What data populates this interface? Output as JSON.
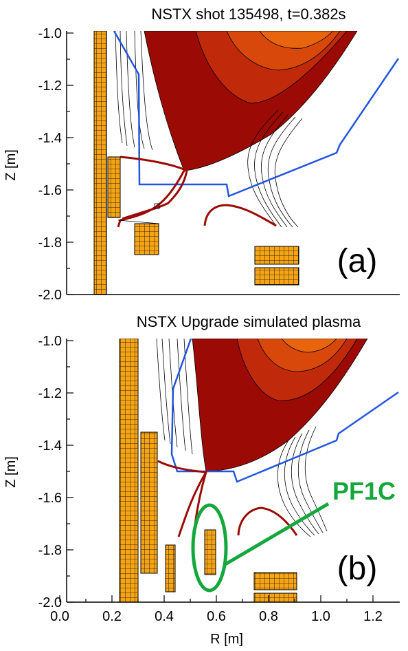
{
  "panel_a": {
    "title": "NSTX shot 135498, t=0.382s",
    "ylabel": "Z [m]",
    "yticks": [
      "-1.0",
      "-1.2",
      "-1.4",
      "-1.6",
      "-1.8",
      "-2.0"
    ],
    "label": "(a)"
  },
  "panel_b": {
    "title": "NSTX Upgrade simulated plasma",
    "ylabel": "Z [m]",
    "yticks": [
      "-1.0",
      "-1.2",
      "-1.4",
      "-1.6",
      "-1.8",
      "-2.0"
    ],
    "xticks": [
      "0.0",
      "0.2",
      "0.4",
      "0.6",
      "0.8",
      "1.0",
      "1.2"
    ],
    "xlabel": "R [m]",
    "label": "(b)",
    "callout": "PF1C"
  },
  "colors": {
    "plasma_outer": "#9b0a05",
    "plasma_mid": "#c02a0a",
    "plasma_inner": "#d8480b",
    "plasma_core": "#e8650e",
    "wall": "#2255dd",
    "coil_fill": "#f5a416",
    "coil_grid": "#000000",
    "divertor_leg": "#9b0a05",
    "callout": "#14a83c"
  }
}
